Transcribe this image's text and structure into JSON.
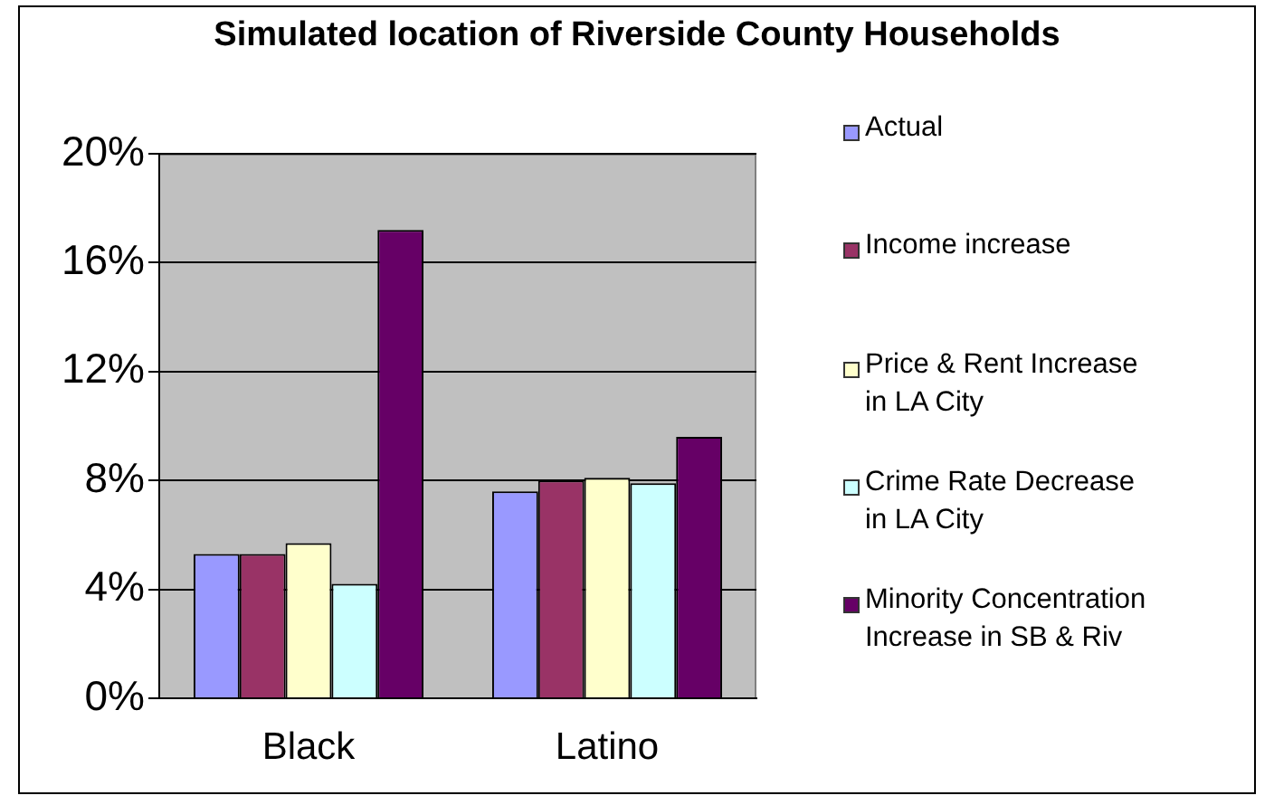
{
  "chart_data": {
    "type": "bar",
    "title": "Simulated location of Riverside County Households",
    "categories": [
      "Black",
      "Latino"
    ],
    "series": [
      {
        "name": "Actual",
        "color": "#9999ff",
        "values": [
          5.3,
          7.6
        ]
      },
      {
        "name": "Income increase",
        "color": "#993366",
        "values": [
          5.3,
          8.0
        ]
      },
      {
        "name": "Price & Rent Increase in LA City",
        "color": "#ffffcc",
        "values": [
          5.7,
          8.1
        ]
      },
      {
        "name": "Crime Rate Decrease in LA City",
        "color": "#ccffff",
        "values": [
          4.2,
          7.9
        ]
      },
      {
        "name": "Minority Concentration Increase in SB & Riv",
        "color": "#660066",
        "values": [
          17.2,
          9.6
        ]
      }
    ],
    "ylim": [
      0,
      20
    ],
    "yticks": [
      {
        "value": 0,
        "label": "0%"
      },
      {
        "value": 4,
        "label": "4%"
      },
      {
        "value": 8,
        "label": "8%"
      },
      {
        "value": 12,
        "label": "12%"
      },
      {
        "value": 16,
        "label": "16%"
      },
      {
        "value": 20,
        "label": "20%"
      }
    ],
    "grid": "y",
    "legend": "right"
  }
}
